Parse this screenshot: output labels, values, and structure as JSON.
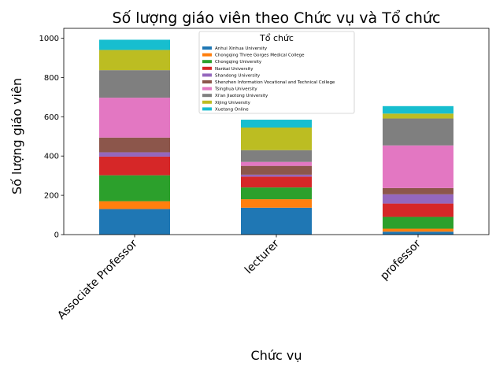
{
  "chart_data": {
    "type": "bar",
    "stacked": true,
    "title": "Số lượng giáo viên theo Chức vụ và Tổ chức",
    "xlabel": "Chức vụ",
    "ylabel": "Số lượng giáo viên",
    "ylim": [
      0,
      1050
    ],
    "yticks": [
      0,
      200,
      400,
      600,
      800,
      1000
    ],
    "categories": [
      "Associate Professor",
      "lecturer",
      "professor"
    ],
    "legend": {
      "title": "Tổ chức",
      "placement": "top-center"
    },
    "grid": false,
    "series": [
      {
        "name": "Anhui Xinhua University",
        "color": "#1f77b4",
        "values": [
          130,
          137,
          15
        ]
      },
      {
        "name": "Chongqing Three Gorges Medical College",
        "color": "#ff7f0e",
        "values": [
          40,
          43,
          15
        ]
      },
      {
        "name": "Chongqing University",
        "color": "#2ca02c",
        "values": [
          132,
          60,
          60
        ]
      },
      {
        "name": "Nankai University",
        "color": "#d62728",
        "values": [
          95,
          55,
          68
        ]
      },
      {
        "name": "Shandong University",
        "color": "#9467bd",
        "values": [
          22,
          10,
          47
        ]
      },
      {
        "name": "Shenzhen Information Vocational and Technical College",
        "color": "#8c564b",
        "values": [
          75,
          45,
          32
        ]
      },
      {
        "name": "Tsinghua University",
        "color": "#e377c2",
        "values": [
          203,
          20,
          217
        ]
      },
      {
        "name": "Xi'an Jiaotong University",
        "color": "#7f7f7f",
        "values": [
          140,
          60,
          137
        ]
      },
      {
        "name": "Xijing University",
        "color": "#bcbd22",
        "values": [
          103,
          115,
          25
        ]
      },
      {
        "name": "Xuetang Online",
        "color": "#17becf",
        "values": [
          52,
          40,
          38
        ]
      }
    ]
  }
}
